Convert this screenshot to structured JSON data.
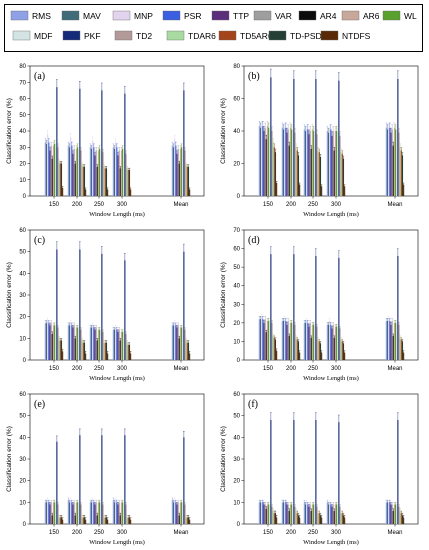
{
  "legend": [
    {
      "name": "RMS",
      "color": "#8fa1e6"
    },
    {
      "name": "MAV",
      "color": "#3f6c78"
    },
    {
      "name": "MNP",
      "color": "#e2d3ef"
    },
    {
      "name": "PSR",
      "color": "#3a5fe0"
    },
    {
      "name": "TTP",
      "color": "#5b2d7a"
    },
    {
      "name": "VAR",
      "color": "#9e9e9e"
    },
    {
      "name": "AR4",
      "color": "#0b0b0b"
    },
    {
      "name": "AR6",
      "color": "#c9a89c"
    },
    {
      "name": "WL",
      "color": "#5aa02c"
    },
    {
      "name": "MDF",
      "color": "#d4e4e4"
    },
    {
      "name": "PKF",
      "color": "#162a7a"
    },
    {
      "name": "TD2",
      "color": "#b39a98"
    },
    {
      "name": "TDAR6",
      "color": "#a8dba0"
    },
    {
      "name": "TD5AR6",
      "color": "#a4441a"
    },
    {
      "name": "TD-PSD",
      "color": "#244036"
    },
    {
      "name": "NTDFS",
      "color": "#5a2a08"
    }
  ],
  "chart_data": [
    {
      "type": "bar",
      "label": "(a)",
      "xlabel": "Window Length (ms)",
      "ylabel": "Classification error (%)",
      "ylim": [
        0,
        80
      ],
      "yticks": [
        0,
        10,
        20,
        30,
        40,
        50,
        60,
        70,
        80
      ],
      "categories": [
        "150",
        "200",
        "250",
        "300",
        "Mean"
      ],
      "series": [
        {
          "name": "RMS",
          "values": [
            33,
            31,
            30,
            30,
            31
          ]
        },
        {
          "name": "MAV",
          "values": [
            32,
            30,
            29,
            29,
            30
          ]
        },
        {
          "name": "MNP",
          "values": [
            38,
            36,
            34,
            33,
            35
          ]
        },
        {
          "name": "PSR",
          "values": [
            33,
            31,
            30,
            30,
            31
          ]
        },
        {
          "name": "TTP",
          "values": [
            28,
            26,
            25,
            25,
            26
          ]
        },
        {
          "name": "VAR",
          "values": [
            31,
            29,
            28,
            28,
            29
          ]
        },
        {
          "name": "AR4",
          "values": [
            23,
            20,
            18,
            17,
            20
          ]
        },
        {
          "name": "AR6",
          "values": [
            31,
            29,
            28,
            28,
            29
          ]
        },
        {
          "name": "WL",
          "values": [
            32,
            30,
            29,
            29,
            30
          ]
        },
        {
          "name": "MDF",
          "values": [
            30,
            28,
            27,
            27,
            28
          ]
        },
        {
          "name": "PKF",
          "values": [
            67,
            66,
            65,
            63,
            65
          ]
        },
        {
          "name": "TD2",
          "values": [
            30,
            28,
            27,
            26,
            28
          ]
        },
        {
          "name": "TDAR6",
          "values": [
            21,
            19,
            18,
            17,
            19
          ]
        },
        {
          "name": "TD5AR6",
          "values": [
            20,
            18,
            17,
            16,
            18
          ]
        },
        {
          "name": "TD-PSD",
          "values": [
            20,
            18,
            17,
            16,
            18
          ]
        },
        {
          "name": "NTDFS",
          "values": [
            5,
            4,
            4,
            4,
            4
          ]
        }
      ]
    },
    {
      "type": "bar",
      "label": "(b)",
      "xlabel": "Window Length (ms)",
      "ylabel": "Classification error (%)",
      "ylim": [
        0,
        80
      ],
      "yticks": [
        0,
        20,
        40,
        60,
        80
      ],
      "categories": [
        "150",
        "200",
        "250",
        "300",
        "Mean"
      ],
      "series": [
        {
          "name": "RMS",
          "values": [
            43,
            42,
            41,
            40,
            42
          ]
        },
        {
          "name": "MAV",
          "values": [
            42,
            41,
            40,
            39,
            41
          ]
        },
        {
          "name": "MNP",
          "values": [
            43,
            42,
            41,
            41,
            42
          ]
        },
        {
          "name": "PSR",
          "values": [
            43,
            42,
            41,
            41,
            42
          ]
        },
        {
          "name": "TTP",
          "values": [
            40,
            39,
            38,
            37,
            39
          ]
        },
        {
          "name": "VAR",
          "values": [
            42,
            41,
            40,
            40,
            41
          ]
        },
        {
          "name": "AR4",
          "values": [
            35,
            31,
            29,
            28,
            31
          ]
        },
        {
          "name": "AR6",
          "values": [
            43,
            42,
            41,
            40,
            42
          ]
        },
        {
          "name": "WL",
          "values": [
            42,
            41,
            40,
            40,
            41
          ]
        },
        {
          "name": "MDF",
          "values": [
            41,
            40,
            39,
            39,
            40
          ]
        },
        {
          "name": "PKF",
          "values": [
            73,
            72,
            72,
            71,
            72
          ]
        },
        {
          "name": "TD2",
          "values": [
            40,
            39,
            38,
            37,
            39
          ]
        },
        {
          "name": "TDAR6",
          "values": [
            33,
            30,
            28,
            27,
            30
          ]
        },
        {
          "name": "TD5AR6",
          "values": [
            30,
            28,
            27,
            26,
            28
          ]
        },
        {
          "name": "TD-PSD",
          "values": [
            27,
            25,
            24,
            23,
            25
          ]
        },
        {
          "name": "NTDFS",
          "values": [
            8,
            7,
            6,
            6,
            7
          ]
        }
      ]
    },
    {
      "type": "bar",
      "label": "(c)",
      "xlabel": "Window Length (ms)",
      "ylabel": "Classification error (%)",
      "ylim": [
        0,
        60
      ],
      "yticks": [
        0,
        10,
        20,
        30,
        40,
        50,
        60
      ],
      "categories": [
        "150",
        "200",
        "250",
        "300",
        "Mean"
      ],
      "series": [
        {
          "name": "RMS",
          "values": [
            17,
            16,
            15,
            14,
            16
          ]
        },
        {
          "name": "MAV",
          "values": [
            17,
            16,
            15,
            14,
            16
          ]
        },
        {
          "name": "MNP",
          "values": [
            18,
            17,
            16,
            15,
            17
          ]
        },
        {
          "name": "PSR",
          "values": [
            17,
            16,
            15,
            14,
            16
          ]
        },
        {
          "name": "TTP",
          "values": [
            16,
            15,
            14,
            13,
            15
          ]
        },
        {
          "name": "VAR",
          "values": [
            17,
            16,
            15,
            14,
            16
          ]
        },
        {
          "name": "AR4",
          "values": [
            12,
            10,
            9,
            9,
            10
          ]
        },
        {
          "name": "AR6",
          "values": [
            16,
            15,
            14,
            13,
            15
          ]
        },
        {
          "name": "WL",
          "values": [
            16,
            15,
            14,
            13,
            15
          ]
        },
        {
          "name": "MDF",
          "values": [
            15,
            14,
            13,
            12,
            14
          ]
        },
        {
          "name": "PKF",
          "values": [
            51,
            51,
            49,
            46,
            50
          ]
        },
        {
          "name": "TD2",
          "values": [
            15,
            14,
            13,
            12,
            14
          ]
        },
        {
          "name": "TDAR6",
          "values": [
            10,
            9,
            8,
            8,
            9
          ]
        },
        {
          "name": "TD5AR6",
          "values": [
            9,
            8,
            8,
            7,
            8
          ]
        },
        {
          "name": "TD-PSD",
          "values": [
            9,
            8,
            8,
            7,
            8
          ]
        },
        {
          "name": "NTDFS",
          "values": [
            4,
            3,
            3,
            3,
            3
          ]
        }
      ]
    },
    {
      "type": "bar",
      "label": "(d)",
      "xlabel": "Window Length (ms)",
      "ylabel": "Classification error (%)",
      "ylim": [
        0,
        70
      ],
      "yticks": [
        0,
        10,
        20,
        30,
        40,
        50,
        60,
        70
      ],
      "categories": [
        "150",
        "200",
        "250",
        "300",
        "Mean"
      ],
      "series": [
        {
          "name": "RMS",
          "values": [
            22,
            21,
            20,
            19,
            21
          ]
        },
        {
          "name": "MAV",
          "values": [
            22,
            21,
            20,
            19,
            21
          ]
        },
        {
          "name": "MNP",
          "values": [
            23,
            22,
            21,
            21,
            22
          ]
        },
        {
          "name": "PSR",
          "values": [
            22,
            21,
            20,
            19,
            21
          ]
        },
        {
          "name": "TTP",
          "values": [
            20,
            19,
            18,
            17,
            19
          ]
        },
        {
          "name": "VAR",
          "values": [
            22,
            21,
            20,
            19,
            21
          ]
        },
        {
          "name": "AR4",
          "values": [
            15,
            13,
            12,
            12,
            13
          ]
        },
        {
          "name": "AR6",
          "values": [
            21,
            20,
            19,
            18,
            20
          ]
        },
        {
          "name": "WL",
          "values": [
            21,
            20,
            19,
            18,
            20
          ]
        },
        {
          "name": "MDF",
          "values": [
            20,
            19,
            18,
            17,
            19
          ]
        },
        {
          "name": "PKF",
          "values": [
            57,
            57,
            56,
            55,
            56
          ]
        },
        {
          "name": "TD2",
          "values": [
            20,
            19,
            18,
            17,
            19
          ]
        },
        {
          "name": "TDAR6",
          "values": [
            13,
            12,
            11,
            11,
            12
          ]
        },
        {
          "name": "TD5AR6",
          "values": [
            12,
            11,
            10,
            10,
            11
          ]
        },
        {
          "name": "TD-PSD",
          "values": [
            11,
            10,
            9,
            9,
            10
          ]
        },
        {
          "name": "NTDFS",
          "values": [
            5,
            4,
            4,
            4,
            4
          ]
        }
      ]
    },
    {
      "type": "bar",
      "label": "(e)",
      "xlabel": "Window Length (ms)",
      "ylabel": "Classification error (%)",
      "ylim": [
        0,
        60
      ],
      "yticks": [
        0,
        10,
        20,
        30,
        40,
        50,
        60
      ],
      "categories": [
        "150",
        "200",
        "250",
        "300",
        "Mean"
      ],
      "series": [
        {
          "name": "RMS",
          "values": [
            10,
            11,
            10,
            11,
            11
          ]
        },
        {
          "name": "MAV",
          "values": [
            10,
            10,
            10,
            10,
            10
          ]
        },
        {
          "name": "MNP",
          "values": [
            11,
            11,
            11,
            11,
            11
          ]
        },
        {
          "name": "PSR",
          "values": [
            10,
            10,
            10,
            10,
            10
          ]
        },
        {
          "name": "TTP",
          "values": [
            9,
            9,
            9,
            9,
            9
          ]
        },
        {
          "name": "VAR",
          "values": [
            10,
            10,
            10,
            10,
            10
          ]
        },
        {
          "name": "AR4",
          "values": [
            4,
            4,
            4,
            4,
            4
          ]
        },
        {
          "name": "AR6",
          "values": [
            10,
            10,
            10,
            10,
            10
          ]
        },
        {
          "name": "WL",
          "values": [
            10,
            10,
            10,
            10,
            10
          ]
        },
        {
          "name": "MDF",
          "values": [
            9,
            9,
            9,
            9,
            9
          ]
        },
        {
          "name": "PKF",
          "values": [
            38,
            41,
            41,
            41,
            40
          ]
        },
        {
          "name": "TD2",
          "values": [
            9,
            9,
            9,
            9,
            9
          ]
        },
        {
          "name": "TDAR6",
          "values": [
            3,
            3,
            3,
            3,
            3
          ]
        },
        {
          "name": "TD5AR6",
          "values": [
            3,
            3,
            3,
            3,
            3
          ]
        },
        {
          "name": "TD-PSD",
          "values": [
            3,
            3,
            3,
            3,
            3
          ]
        },
        {
          "name": "NTDFS",
          "values": [
            2,
            2,
            2,
            2,
            2
          ]
        }
      ]
    },
    {
      "type": "bar",
      "label": "(f)",
      "xlabel": "Window Length (ms)",
      "ylabel": "Classification error (%)",
      "ylim": [
        0,
        60
      ],
      "yticks": [
        0,
        10,
        20,
        30,
        40,
        50,
        60
      ],
      "categories": [
        "150",
        "200",
        "250",
        "300",
        "Mean"
      ],
      "series": [
        {
          "name": "RMS",
          "values": [
            10,
            10,
            10,
            10,
            10
          ]
        },
        {
          "name": "MAV",
          "values": [
            10,
            10,
            9,
            9,
            10
          ]
        },
        {
          "name": "MNP",
          "values": [
            10,
            10,
            10,
            10,
            10
          ]
        },
        {
          "name": "PSR",
          "values": [
            10,
            10,
            9,
            9,
            10
          ]
        },
        {
          "name": "TTP",
          "values": [
            9,
            9,
            8,
            8,
            9
          ]
        },
        {
          "name": "VAR",
          "values": [
            9,
            9,
            9,
            9,
            9
          ]
        },
        {
          "name": "AR4",
          "values": [
            7,
            6,
            6,
            6,
            6
          ]
        },
        {
          "name": "AR6",
          "values": [
            9,
            9,
            9,
            9,
            9
          ]
        },
        {
          "name": "WL",
          "values": [
            9,
            9,
            9,
            9,
            9
          ]
        },
        {
          "name": "MDF",
          "values": [
            8,
            8,
            8,
            8,
            8
          ]
        },
        {
          "name": "PKF",
          "values": [
            48,
            48,
            48,
            47,
            48
          ]
        },
        {
          "name": "TD2",
          "values": [
            8,
            8,
            8,
            8,
            8
          ]
        },
        {
          "name": "TDAR6",
          "values": [
            6,
            6,
            5,
            5,
            6
          ]
        },
        {
          "name": "TD5AR6",
          "values": [
            5,
            5,
            5,
            5,
            5
          ]
        },
        {
          "name": "TD-PSD",
          "values": [
            5,
            4,
            4,
            4,
            4
          ]
        },
        {
          "name": "NTDFS",
          "values": [
            3,
            3,
            3,
            3,
            3
          ]
        }
      ]
    }
  ]
}
